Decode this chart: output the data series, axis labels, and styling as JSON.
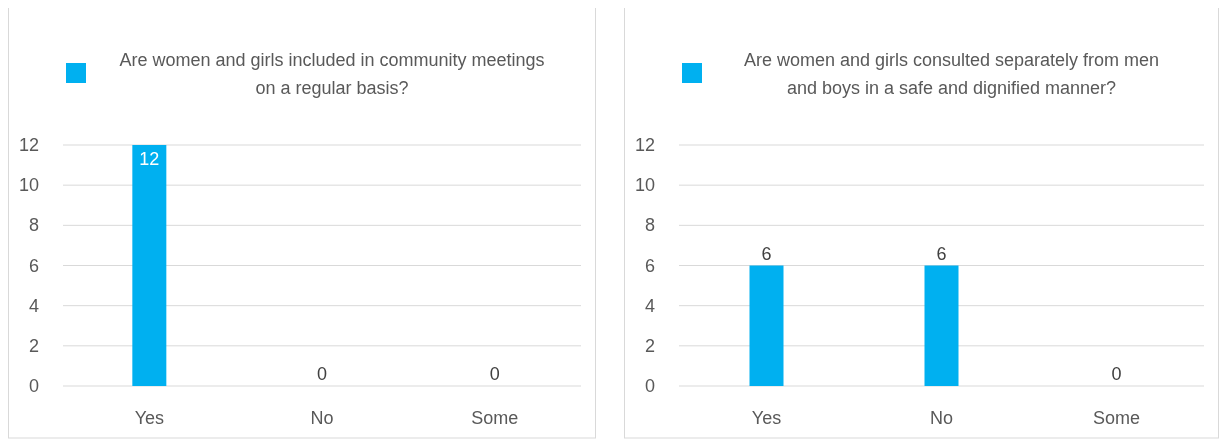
{
  "chart_data": [
    {
      "type": "bar",
      "categories": [
        "Yes",
        "No",
        "Some"
      ],
      "series": [
        {
          "name": "Are women and girls included in community meetings on a regular basis?",
          "color": "#00b0f0",
          "values": [
            12,
            0,
            0
          ]
        }
      ],
      "ylim": [
        0,
        12
      ],
      "yticks": [
        0,
        2,
        4,
        6,
        8,
        10,
        12
      ],
      "grid": "y",
      "legend": "top",
      "data_labels": true
    },
    {
      "type": "bar",
      "categories": [
        "Yes",
        "No",
        "Some"
      ],
      "series": [
        {
          "name": "Are women and girls consulted separately from men and boys in a safe and dignified manner?",
          "color": "#00b0f0",
          "values": [
            6,
            6,
            0
          ]
        }
      ],
      "ylim": [
        0,
        12
      ],
      "yticks": [
        0,
        2,
        4,
        6,
        8,
        10,
        12
      ],
      "grid": "y",
      "legend": "top",
      "data_labels": true
    }
  ]
}
